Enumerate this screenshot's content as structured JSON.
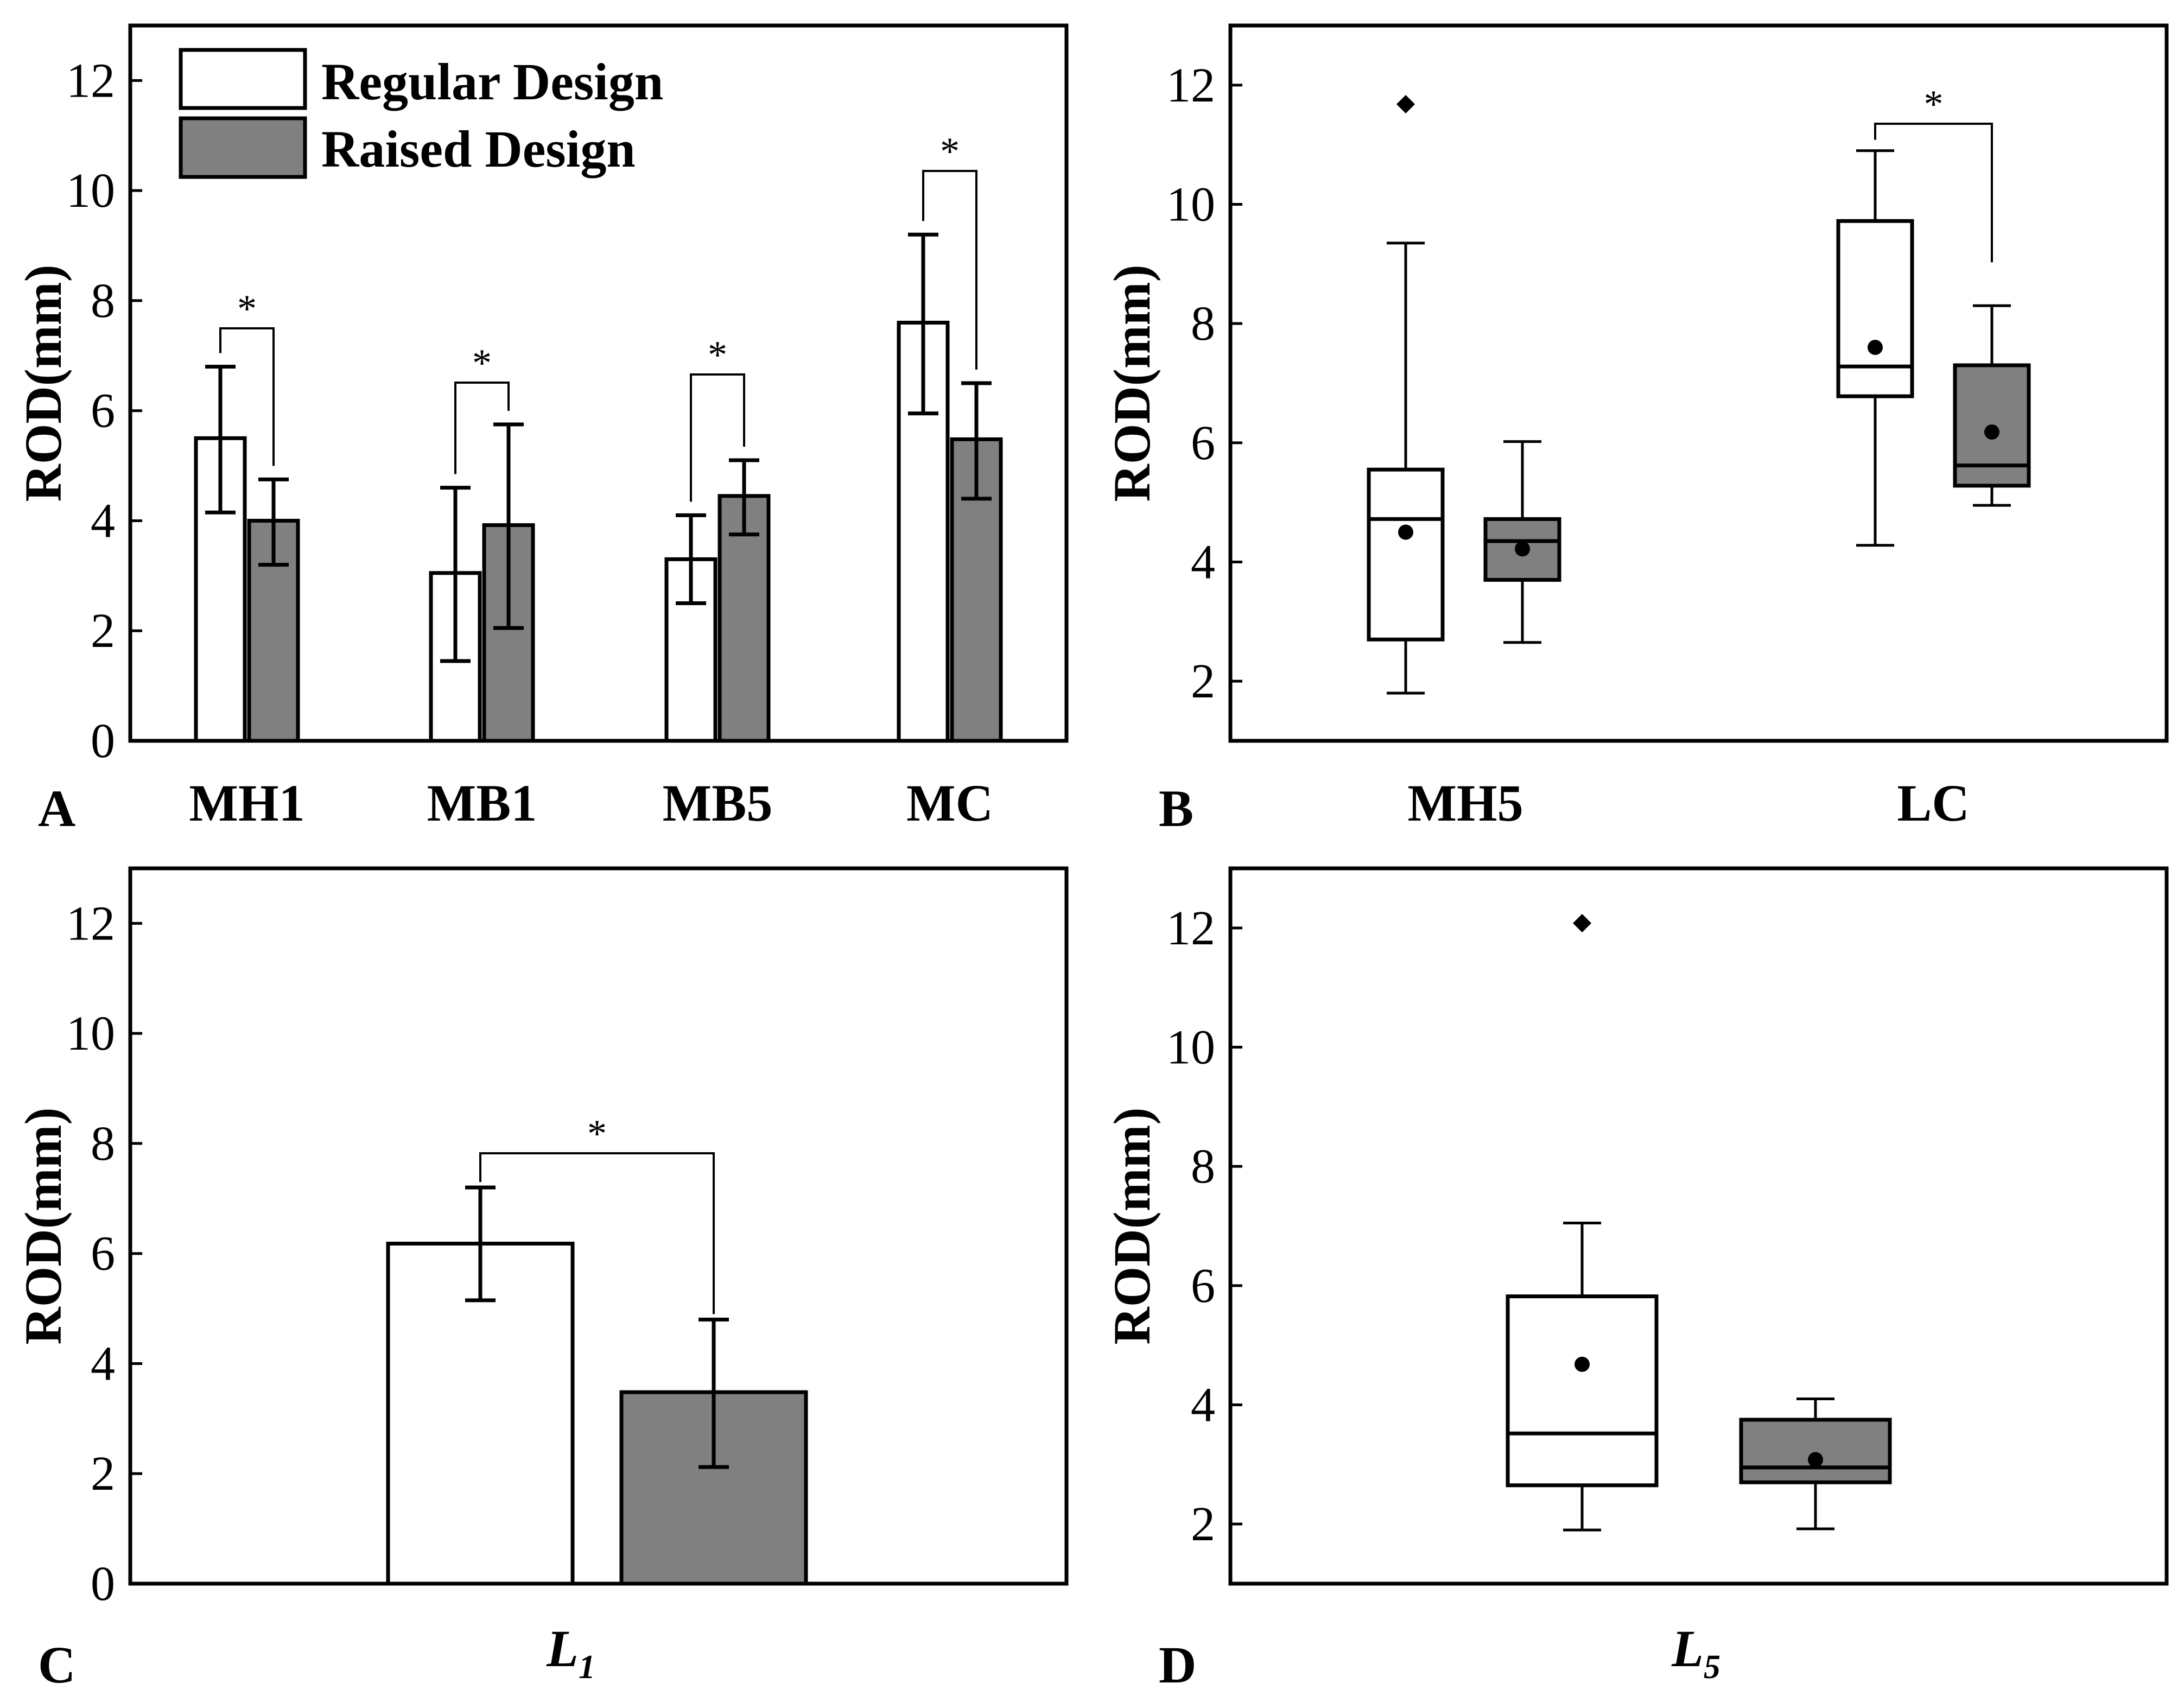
{
  "colors": {
    "regular": "#ffffff",
    "raised": "#808080",
    "ink": "#000000"
  },
  "chart_data": [
    {
      "panel": "A",
      "type": "bar",
      "ylabel": "ROD(mm)",
      "ylim": [
        0,
        13
      ],
      "yticks": [
        0,
        2,
        4,
        6,
        8,
        10,
        12
      ],
      "categories": [
        "MH1",
        "MB1",
        "MB5",
        "MC"
      ],
      "series": [
        {
          "name": "Regular Design",
          "values": [
            5.5,
            3.05,
            3.3,
            7.6
          ],
          "err_low": [
            4.15,
            1.45,
            2.5,
            5.95
          ],
          "err_high": [
            6.8,
            4.6,
            4.1,
            9.2
          ]
        },
        {
          "name": "Raised Design",
          "values": [
            4.0,
            3.92,
            4.45,
            5.48
          ],
          "err_low": [
            3.2,
            2.05,
            3.75,
            4.4
          ],
          "err_high": [
            4.75,
            5.75,
            5.1,
            6.5
          ]
        }
      ],
      "significance": [
        "*",
        "*",
        "*",
        "*"
      ],
      "legend": [
        "Regular Design",
        "Raised Design"
      ]
    },
    {
      "panel": "B",
      "type": "box",
      "ylabel": "ROD(mm)",
      "ylim": [
        1,
        13
      ],
      "yticks": [
        2,
        4,
        6,
        8,
        10,
        12
      ],
      "categories": [
        "MH5",
        "LC"
      ],
      "series": [
        {
          "name": "Regular Design",
          "boxes": [
            {
              "whisker_low": 1.8,
              "q1": 2.7,
              "median": 4.72,
              "q3": 5.55,
              "whisker_high": 9.35,
              "mean": 4.5,
              "outliers": [
                11.68
              ]
            },
            {
              "whisker_low": 4.28,
              "q1": 6.78,
              "median": 7.28,
              "q3": 9.72,
              "whisker_high": 10.9,
              "mean": 7.6,
              "outliers": []
            }
          ]
        },
        {
          "name": "Raised Design",
          "boxes": [
            {
              "whisker_low": 2.65,
              "q1": 3.7,
              "median": 4.35,
              "q3": 4.72,
              "whisker_high": 6.02,
              "mean": 4.22,
              "outliers": []
            },
            {
              "whisker_low": 4.95,
              "q1": 5.28,
              "median": 5.62,
              "q3": 7.3,
              "whisker_high": 8.3,
              "mean": 6.18,
              "outliers": []
            }
          ]
        }
      ],
      "significance": [
        "",
        "*"
      ]
    },
    {
      "panel": "C",
      "type": "bar",
      "ylabel": "ROD(mm)",
      "xlabel_main": "L",
      "xlabel_sub": "1",
      "ylim": [
        0,
        13
      ],
      "yticks": [
        0,
        2,
        4,
        6,
        8,
        10,
        12
      ],
      "series": [
        {
          "name": "Regular Design",
          "value": 6.18,
          "err_low": 5.15,
          "err_high": 7.2
        },
        {
          "name": "Raised Design",
          "value": 3.48,
          "err_low": 2.12,
          "err_high": 4.8
        }
      ],
      "significance": "*"
    },
    {
      "panel": "D",
      "type": "box",
      "ylabel": "ROD(mm)",
      "xlabel_main": "L",
      "xlabel_sub": "5",
      "ylim": [
        1,
        13
      ],
      "yticks": [
        2,
        4,
        6,
        8,
        10,
        12
      ],
      "series": [
        {
          "name": "Regular Design",
          "whisker_low": 1.9,
          "q1": 2.65,
          "median": 3.52,
          "q3": 5.82,
          "whisker_high": 7.05,
          "mean": 4.68,
          "outliers": [
            12.08
          ]
        },
        {
          "name": "Raised Design",
          "whisker_low": 1.92,
          "q1": 2.7,
          "median": 2.95,
          "q3": 3.75,
          "whisker_high": 4.1,
          "mean": 3.08,
          "outliers": []
        }
      ]
    }
  ]
}
